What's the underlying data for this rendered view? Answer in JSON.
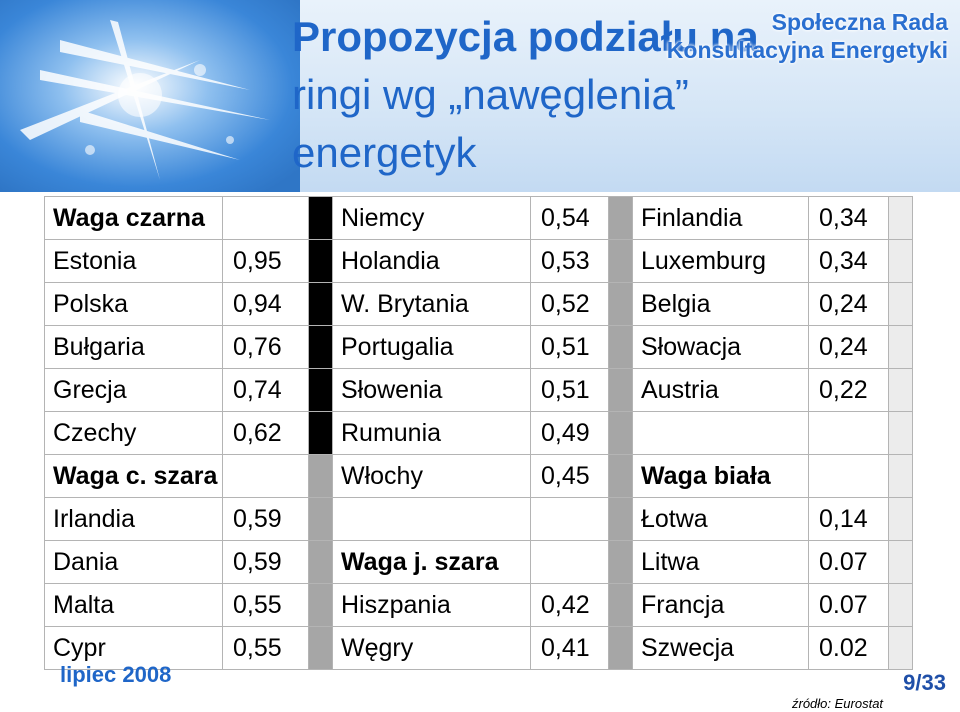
{
  "header": {
    "title_line1": "Propozycja podziału na",
    "title_line2": "ringi wg „nawęglenia”",
    "title_line3": "energetyk",
    "org_line1": "Społeczna Rada",
    "org_line2": "Konsultacyjna Energetyki"
  },
  "table": {
    "rows": [
      [
        {
          "t": "Waga czarna",
          "bold": true
        },
        {
          "t": ""
        },
        {
          "bar": "black"
        },
        {
          "t": "Niemcy"
        },
        {
          "t": "0,54"
        },
        {
          "bar": "gray"
        },
        {
          "t": "Finlandia"
        },
        {
          "t": "0,34"
        },
        {
          "bar": "light"
        }
      ],
      [
        {
          "t": "Estonia"
        },
        {
          "t": "0,95"
        },
        {
          "bar": "black"
        },
        {
          "t": "Holandia"
        },
        {
          "t": "0,53"
        },
        {
          "bar": "gray"
        },
        {
          "t": "Luxemburg"
        },
        {
          "t": "0,34"
        },
        {
          "bar": "light"
        }
      ],
      [
        {
          "t": "Polska"
        },
        {
          "t": "0,94"
        },
        {
          "bar": "black"
        },
        {
          "t": "W. Brytania"
        },
        {
          "t": "0,52"
        },
        {
          "bar": "gray"
        },
        {
          "t": "Belgia"
        },
        {
          "t": "0,24"
        },
        {
          "bar": "light"
        }
      ],
      [
        {
          "t": "Bułgaria"
        },
        {
          "t": "0,76"
        },
        {
          "bar": "black"
        },
        {
          "t": "Portugalia"
        },
        {
          "t": "0,51"
        },
        {
          "bar": "gray"
        },
        {
          "t": "Słowacja"
        },
        {
          "t": "0,24"
        },
        {
          "bar": "light"
        }
      ],
      [
        {
          "t": "Grecja"
        },
        {
          "t": "0,74"
        },
        {
          "bar": "black"
        },
        {
          "t": "Słowenia"
        },
        {
          "t": "0,51"
        },
        {
          "bar": "gray"
        },
        {
          "t": "Austria"
        },
        {
          "t": "0,22"
        },
        {
          "bar": "light"
        }
      ],
      [
        {
          "t": "Czechy"
        },
        {
          "t": "0,62"
        },
        {
          "bar": "black"
        },
        {
          "t": "Rumunia"
        },
        {
          "t": "0,49"
        },
        {
          "bar": "gray"
        },
        {
          "t": ""
        },
        {
          "t": ""
        },
        {
          "bar": "light"
        }
      ],
      [
        {
          "t": "Waga c. szara",
          "bold": true
        },
        {
          "t": ""
        },
        {
          "bar": "gray"
        },
        {
          "t": "Włochy"
        },
        {
          "t": "0,45"
        },
        {
          "bar": "gray"
        },
        {
          "t": "Waga biała",
          "bold": true
        },
        {
          "t": ""
        },
        {
          "bar": "light"
        }
      ],
      [
        {
          "t": "Irlandia"
        },
        {
          "t": "0,59"
        },
        {
          "bar": "gray"
        },
        {
          "t": ""
        },
        {
          "t": ""
        },
        {
          "bar": "gray"
        },
        {
          "t": "Łotwa"
        },
        {
          "t": "0,14"
        },
        {
          "bar": "light"
        }
      ],
      [
        {
          "t": "Dania"
        },
        {
          "t": "0,59"
        },
        {
          "bar": "gray"
        },
        {
          "t": "Waga j. szara",
          "bold": true
        },
        {
          "t": ""
        },
        {
          "bar": "gray"
        },
        {
          "t": "Litwa"
        },
        {
          "t": "0.07"
        },
        {
          "bar": "light"
        }
      ],
      [
        {
          "t": "Malta"
        },
        {
          "t": "0,55"
        },
        {
          "bar": "gray"
        },
        {
          "t": "Hiszpania"
        },
        {
          "t": "0,42"
        },
        {
          "bar": "gray"
        },
        {
          "t": "Francja"
        },
        {
          "t": "0.07"
        },
        {
          "bar": "light"
        }
      ],
      [
        {
          "t": "Cypr"
        },
        {
          "t": "0,55"
        },
        {
          "bar": "gray"
        },
        {
          "t": "Węgry"
        },
        {
          "t": "0,41"
        },
        {
          "bar": "gray"
        },
        {
          "t": "Szwecja"
        },
        {
          "t": "0.02"
        },
        {
          "bar": "light"
        }
      ]
    ]
  },
  "footer": {
    "date": "lipiec 2008",
    "page": "9/33",
    "source": "źródło: Eurostat"
  }
}
